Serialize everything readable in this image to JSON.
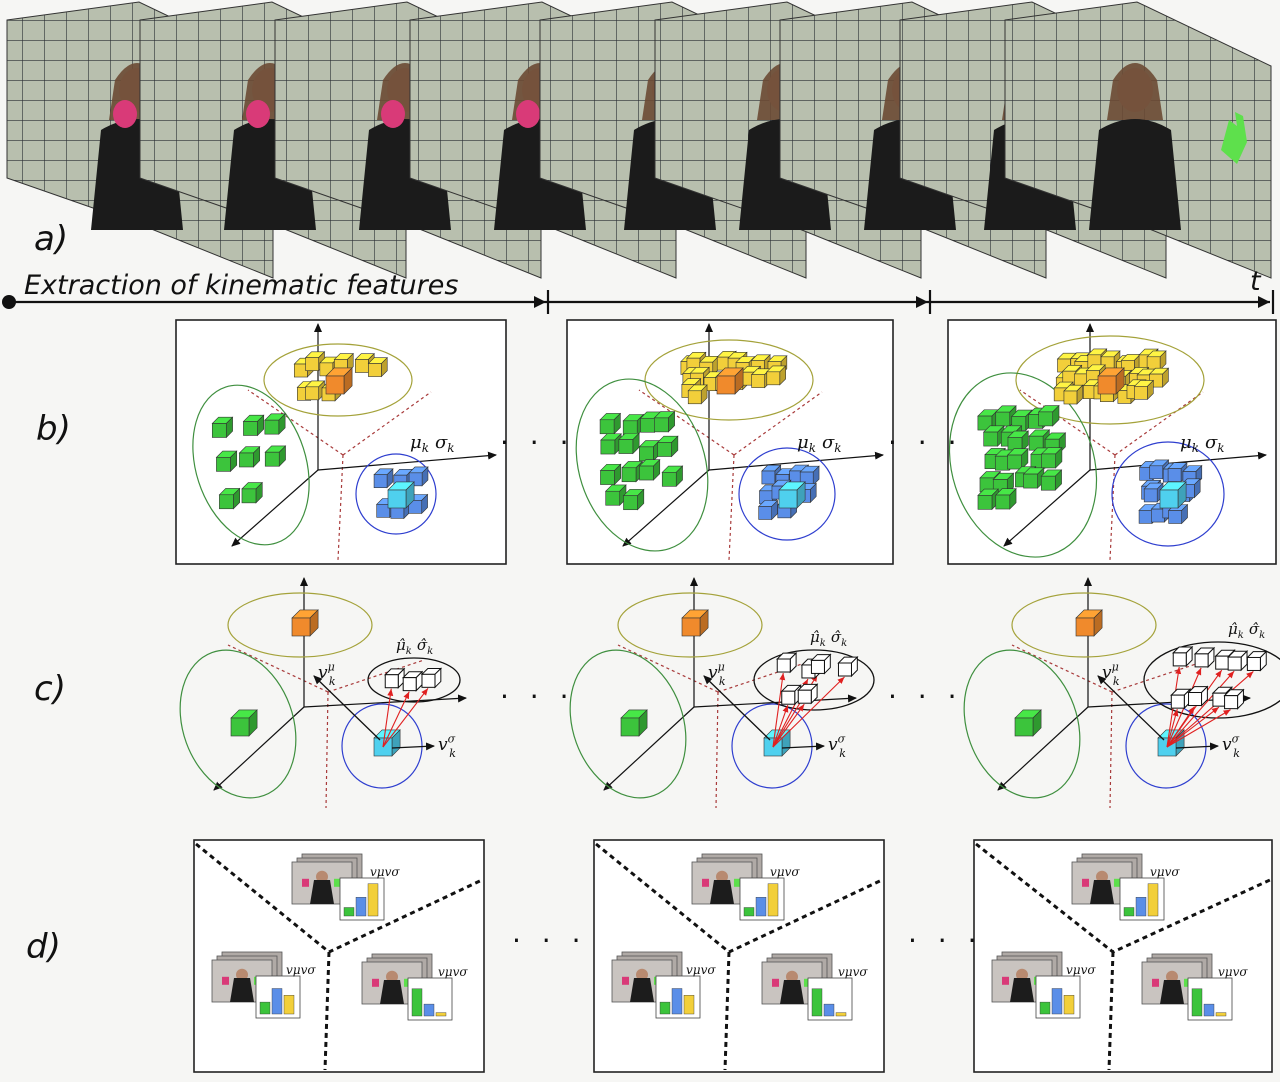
{
  "labels": {
    "a": "a)",
    "b": "b)",
    "c": "c)",
    "d": "d)"
  },
  "timeline": {
    "title": "Extraction of kinematic features",
    "t_label": "t"
  },
  "feature_labels": {
    "mu": "μ",
    "sigma": "σ",
    "sub": "k"
  },
  "velocity_labels": {
    "v": "v",
    "mu_sup": "μ",
    "sigma_sup": "σ",
    "sub": "k",
    "mu_hat": "μ̂",
    "sigma_hat": "σ̂"
  },
  "histogram_label": "vμvσ",
  "ellipsis": "· · ·",
  "colors": {
    "yellow": "#f2cf3a",
    "orange": "#f08a2c",
    "green": "#3cc43c",
    "blue": "#5a8ee8",
    "cyan": "#4fd0ee",
    "arrow_red": "#e02020",
    "dashed_red": "#a83a3a",
    "ellipse_yellow": "#a4a23a",
    "ellipse_green": "#3f8f3f",
    "ellipse_blue": "#2f3fcf"
  }
}
